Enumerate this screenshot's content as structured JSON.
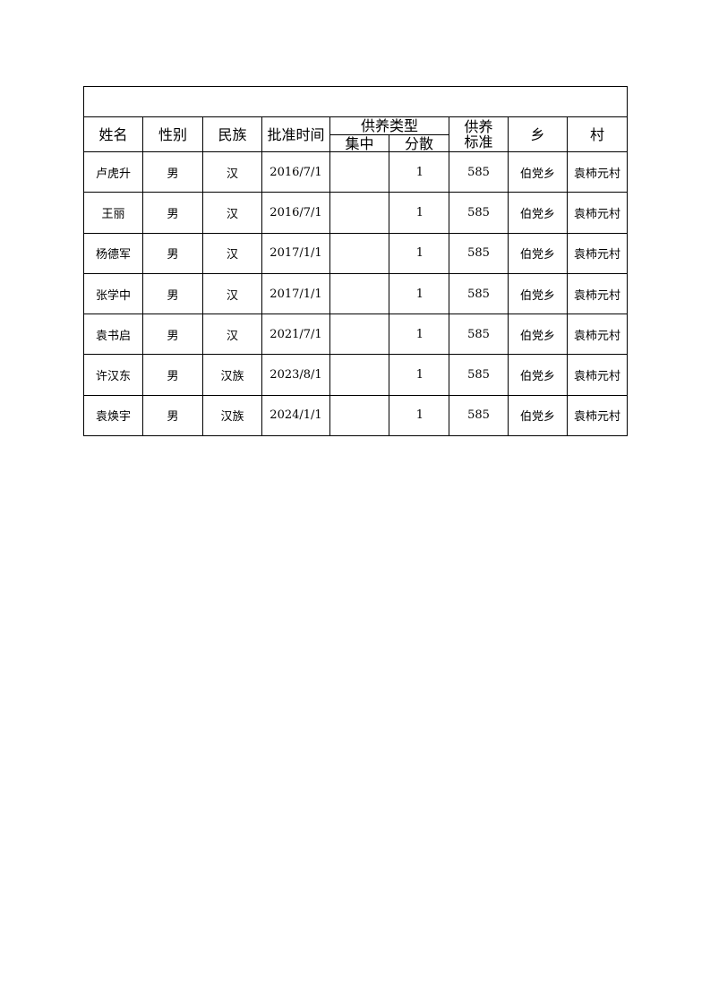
{
  "title": "",
  "headers": {
    "name": "姓名",
    "gender": "性别",
    "ethnicity": "民族",
    "approval_date": "批准时间",
    "support_type": "供养类型",
    "centralized": "集中",
    "dispersed": "分散",
    "standard": "供养\n标准",
    "township": "乡",
    "village": "村"
  },
  "rows": [
    [
      "卢虎升",
      "男",
      "汉",
      "2016/7/1",
      "",
      "1",
      "585",
      "伯党乡",
      "袁柿元村"
    ],
    [
      "王丽",
      "男",
      "汉",
      "2016/7/1",
      "",
      "1",
      "585",
      "伯党乡",
      "袁柿元村"
    ],
    [
      "杨德军",
      "男",
      "汉",
      "2017/1/1",
      "",
      "1",
      "585",
      "伯党乡",
      "袁柿元村"
    ],
    [
      "张学中",
      "男",
      "汉",
      "2017/1/1",
      "",
      "1",
      "585",
      "伯党乡",
      "袁柿元村"
    ],
    [
      "袁书启",
      "男",
      "汉",
      "2021/7/1",
      "",
      "1",
      "585",
      "伯党乡",
      "袁柿元村"
    ],
    [
      "许汉东",
      "男",
      "汉族",
      "2023/8/1",
      "",
      "1",
      "585",
      "伯党乡",
      "袁柿元村"
    ],
    [
      "袁焕宇",
      "男",
      "汉族",
      "2024/1/1",
      "",
      "1",
      "585",
      "伯党乡",
      "袁柿元村"
    ]
  ]
}
